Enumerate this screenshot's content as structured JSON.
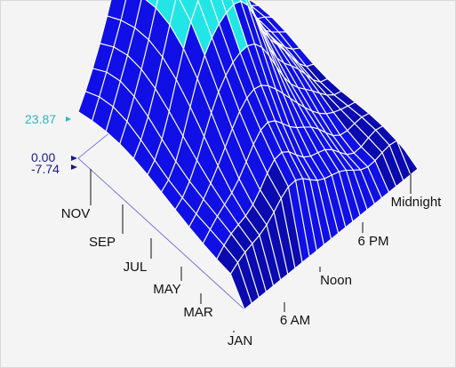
{
  "chart_data": {
    "type": "surface3d",
    "title": "",
    "z_ticks": [
      "0.00",
      "-7.74"
    ],
    "z_marker": "23.87",
    "month_axis": {
      "labels": [
        "JAN",
        "MAR",
        "MAY",
        "JUL",
        "SEP",
        "NOV"
      ]
    },
    "time_axis": {
      "labels": [
        "6 AM",
        "Noon",
        "6 PM",
        "Midnight"
      ]
    },
    "surface_grid": {
      "rows": 12,
      "cols": 24
    },
    "colors": {
      "surface": "#1010e6",
      "surface_dark": "#0a0ab0",
      "highlight": "#22e6e6",
      "grid_lines": "#ffffff",
      "z_marker": "#2ab7c6",
      "z_axis": "#1a1a8c",
      "background": "#f4f4f4"
    }
  }
}
